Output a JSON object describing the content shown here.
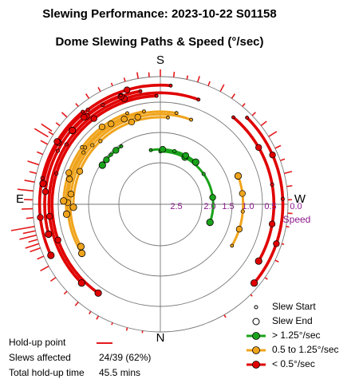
{
  "title": "Slewing Performance: 2023-10-22 S01158",
  "chart_data": {
    "type": "polar",
    "title": "Dome Slewing Paths & Speed (°/sec)",
    "compass": {
      "top": "S",
      "right": "W",
      "bottom": "N",
      "left": "E"
    },
    "radial_axis": {
      "label": "Speed",
      "tick_labels": [
        "2.5",
        "2.0",
        "1.5",
        "1.0",
        "0.5",
        "0.0"
      ],
      "note": "speed decreases outward; 0.0°/sec at outer ring, 2.5°/sec at center edge"
    },
    "colors": {
      "fast": "#1aa31a",
      "medium": "#f0a41c",
      "slow": "#e00000",
      "holdup": "#e41a1c",
      "grid": "#777777",
      "speed_label": "#8b1a8b"
    },
    "series": [
      {
        "name": "> 1.25°/sec",
        "paths": [
          {
            "speed": 1.75,
            "start_az": 180,
            "end_az": 290
          },
          {
            "speed": 1.7,
            "start_az": 170,
            "end_az": 220
          },
          {
            "speed": 1.35,
            "start_az": 146,
            "end_az": 124
          }
        ]
      },
      {
        "name": "0.5 to 1.25°/sec",
        "paths": [
          {
            "speed": 0.95,
            "start_az": 185,
            "end_az": 88
          },
          {
            "speed": 0.88,
            "start_az": 200,
            "end_az": 62
          },
          {
            "speed": 0.82,
            "start_az": 190,
            "end_az": 58
          },
          {
            "speed": 0.78,
            "start_az": 170,
            "end_az": 84
          },
          {
            "speed": 0.72,
            "start_az": 160,
            "end_az": 92
          },
          {
            "speed": 1.05,
            "start_az": 300,
            "end_az": 250
          }
        ]
      },
      {
        "name": "< 0.5°/sec",
        "paths": [
          {
            "speed": 0.45,
            "start_az": 178,
            "end_az": 35
          },
          {
            "speed": 0.38,
            "start_az": 200,
            "end_az": 45
          },
          {
            "speed": 0.33,
            "start_az": 220,
            "end_az": 300
          },
          {
            "speed": 0.3,
            "start_az": 170,
            "end_az": 130
          },
          {
            "speed": 0.28,
            "start_az": 160,
            "end_az": 75
          },
          {
            "speed": 0.2,
            "start_az": 185,
            "end_az": 100
          },
          {
            "speed": 0.16,
            "start_az": 140,
            "end_az": 65
          },
          {
            "speed": 0.12,
            "start_az": 225,
            "end_az": 310
          }
        ]
      }
    ],
    "holdup_points_az": [
      8,
      15,
      22,
      29,
      33,
      40,
      47,
      55,
      61,
      66,
      70,
      72,
      74,
      76,
      78,
      80,
      84,
      88,
      92,
      96,
      100,
      104,
      108,
      113,
      118,
      123,
      128,
      133,
      140,
      146,
      152,
      158,
      164,
      170,
      175,
      180,
      186,
      192,
      197,
      202,
      208,
      214,
      220,
      226,
      232,
      238,
      244,
      250,
      256,
      262,
      268,
      274,
      280,
      288,
      296,
      305,
      315,
      330
    ],
    "holdup_lengths": [
      3,
      4,
      3,
      5,
      4,
      6,
      5,
      8,
      12,
      9,
      14,
      18,
      12,
      22,
      16,
      30,
      9,
      14,
      11,
      20,
      13,
      9,
      15,
      8,
      10,
      7,
      6,
      9,
      5,
      7,
      6,
      4,
      5,
      8,
      6,
      9,
      7,
      5,
      8,
      6,
      10,
      7,
      5,
      6,
      9,
      12,
      8,
      6,
      10,
      7,
      5,
      6,
      4,
      3,
      5,
      4,
      3,
      4
    ]
  },
  "legend": {
    "slew_start": "Slew Start",
    "slew_end": "Slew End",
    "fast": "> 1.25°/sec",
    "medium": "0.5 to 1.25°/sec",
    "slow": "< 0.5°/sec"
  },
  "stats": {
    "holdup_label": "Hold-up point",
    "slews_label": "Slews affected",
    "slews_value": "24/39 (62%)",
    "time_label": "Total hold-up time",
    "time_value": "45.5 mins"
  }
}
